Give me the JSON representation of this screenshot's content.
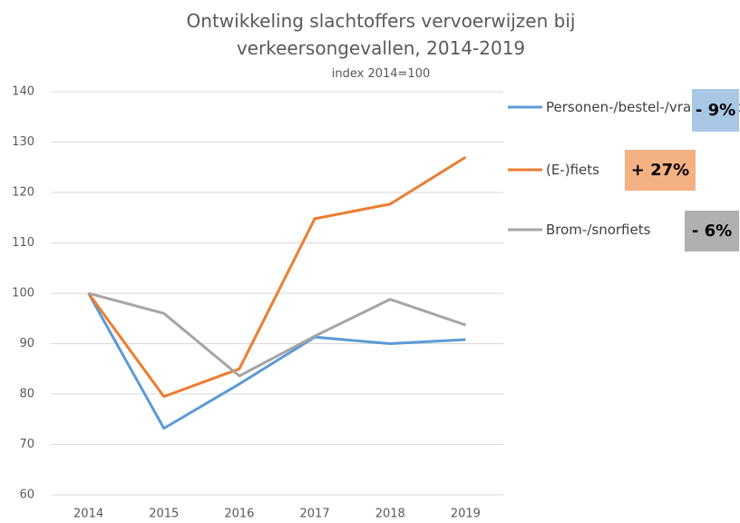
{
  "chart_data": {
    "type": "line",
    "title": "Ontwikkeling slachtoffers vervoerwijzen bij verkeersongevallen, 2014-2019",
    "subtitle": "index 2014=100",
    "categories": [
      "2014",
      "2015",
      "2016",
      "2017",
      "2018",
      "2019"
    ],
    "series": [
      {
        "name": "Personen-/bestel-/vrachtauto",
        "color": "#5b9bd5",
        "values": [
          100,
          73.2,
          82,
          91.3,
          90,
          90.8
        ]
      },
      {
        "name": "(E-)fiets",
        "color": "#ed7d31",
        "values": [
          100,
          79.5,
          85,
          114.8,
          117.7,
          127
        ]
      },
      {
        "name": "Brom-/snorfiets",
        "color": "#a5a5a5",
        "values": [
          100,
          96,
          83.6,
          91.5,
          98.8,
          93.7
        ]
      }
    ],
    "annotations": [
      {
        "text": "- 9%",
        "color": "#a9c8e8"
      },
      {
        "text": "+ 27%",
        "color": "#f4b183"
      },
      {
        "text": "- 6%",
        "color": "#b0b0b0"
      }
    ],
    "ylim": [
      60,
      140
    ],
    "yticks": [
      60,
      70,
      80,
      90,
      100,
      110,
      120,
      130,
      140
    ],
    "grid": true,
    "legend": "right"
  }
}
